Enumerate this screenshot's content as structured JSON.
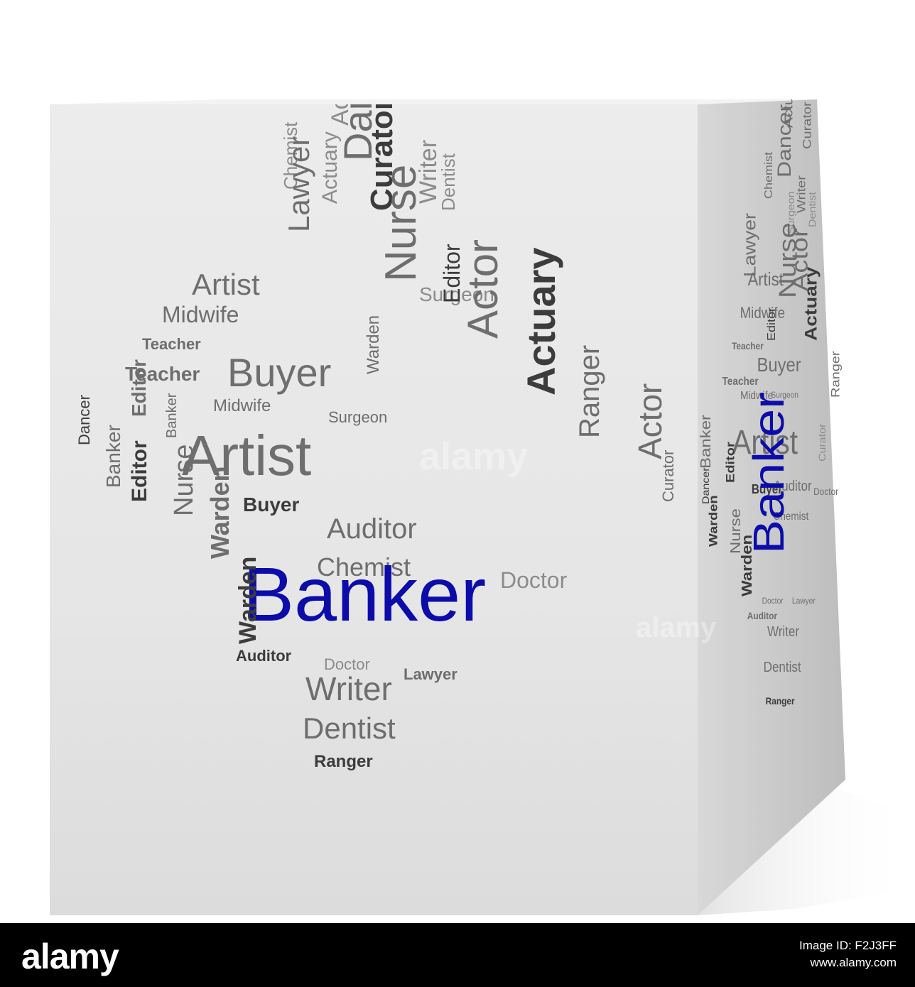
{
  "colors": {
    "front_face": "#e8e8e8",
    "side_face": "#cdcdcd",
    "top_face": "#f2f2f2",
    "highlight_word": "#0c0caa",
    "dark_word": "#3c3c3c",
    "mid_word": "#6e6e6e",
    "light_word": "#8c8c8c",
    "footer_bg": "#000000",
    "footer_text": "#ffffff"
  },
  "front_words": [
    "Actuary",
    "Dancer",
    "Chemist",
    "Actuary",
    "Writer",
    "Curator",
    "Lawyer",
    "Dentist",
    "Artist",
    "Surgeon",
    "Midwife",
    "Nurse",
    "Teacher",
    "Editor",
    "Buyer",
    "Actor",
    "Teacher",
    "Warden",
    "Midwife",
    "Surgeon",
    "Editor",
    "Dancer",
    "Banker",
    "Banker",
    "Artist",
    "Actuary",
    "Ranger",
    "Actor",
    "Curator",
    "Nurse",
    "Buyer",
    "Editor",
    "Auditor",
    "Chemist",
    "Warden",
    "Doctor",
    "Banker",
    "Warden",
    "Auditor",
    "Doctor",
    "Lawyer",
    "Writer",
    "Dentist",
    "Ranger"
  ],
  "side_words": [
    "Actuary",
    "Dancer",
    "Chemist",
    "Writer",
    "Curator",
    "Lawyer",
    "Surgeon",
    "Dentist",
    "Artist",
    "Midwife",
    "Nurse",
    "Teacher",
    "Buyer",
    "Teacher",
    "Editor",
    "Midwife",
    "Surgeon",
    "Actor",
    "Actuary",
    "Dancer",
    "Artist",
    "Banker",
    "Ranger",
    "Editor",
    "Buyer",
    "Auditor",
    "Doctor",
    "Curator",
    "Warden",
    "Nurse",
    "Chemist",
    "Warden",
    "Banker",
    "Doctor",
    "Lawyer",
    "Auditor",
    "Writer",
    "Dentist",
    "Ranger"
  ],
  "watermark": "alamy",
  "footer": {
    "logo": "alamy",
    "image_id_label": "Image ID: F2J3FF",
    "site": "www.alamy.com"
  }
}
